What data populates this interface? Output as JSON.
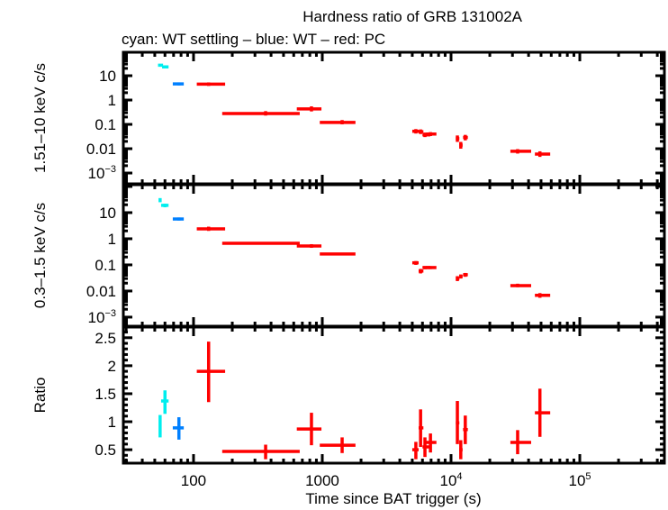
{
  "chart_data": {
    "type": "scatter",
    "title": "Hardness ratio of GRB 131002A",
    "subtitle": "cyan: WT settling – blue: WT – red: PC",
    "xlabel": "Time since BAT trigger (s)",
    "xscale": "log",
    "xlim": [
      28.5,
      454000
    ],
    "xticks": [
      {
        "value": 100,
        "label": "100"
      },
      {
        "value": 1000,
        "label": "1000"
      },
      {
        "value": 10000,
        "label": "10",
        "sup": "4"
      },
      {
        "value": 100000,
        "label": "10",
        "sup": "5"
      }
    ],
    "colors": {
      "wt_settling": "#00eeee",
      "wt": "#0080ff",
      "pc": "#ff0000"
    },
    "legend": "subtitle text (top-left)",
    "grid": false,
    "panels": [
      {
        "id": "hard",
        "ylabel": "1.51–10 keV c/s",
        "yscale": "log",
        "ylim": [
          0.00036,
          92
        ],
        "yticks": [
          {
            "value": 10,
            "label": "10"
          },
          {
            "value": 1,
            "label": "1"
          },
          {
            "value": 0.1,
            "label": "0.1"
          },
          {
            "value": 0.01,
            "label": "0.01"
          },
          {
            "value": 0.001,
            "label": "10",
            "sup": "−3"
          }
        ],
        "series": [
          {
            "name": "WT settling",
            "color_key": "wt_settling",
            "points": [
              {
                "x": 55,
                "xlo": 53,
                "xhi": 58,
                "y": 27,
                "ylo": 24,
                "yhi": 30
              },
              {
                "x": 60,
                "xlo": 57,
                "xhi": 64,
                "y": 23,
                "ylo": 21,
                "yhi": 25
              }
            ]
          },
          {
            "name": "WT",
            "color_key": "wt",
            "points": [
              {
                "x": 77,
                "xlo": 69,
                "xhi": 84,
                "y": 4.6,
                "ylo": 4.0,
                "yhi": 5.3
              }
            ]
          },
          {
            "name": "PC",
            "color_key": "pc",
            "points": [
              {
                "x": 131,
                "xlo": 106,
                "xhi": 176,
                "y": 4.5,
                "ylo": 3.8,
                "yhi": 5.3
              },
              {
                "x": 363,
                "xlo": 167,
                "xhi": 668,
                "y": 0.28,
                "ylo": 0.23,
                "yhi": 0.35
              },
              {
                "x": 824,
                "xlo": 634,
                "xhi": 985,
                "y": 0.43,
                "ylo": 0.34,
                "yhi": 0.55
              },
              {
                "x": 1426,
                "xlo": 956,
                "xhi": 1810,
                "y": 0.12,
                "ylo": 0.1,
                "yhi": 0.15
              },
              {
                "x": 5330,
                "xlo": 5000,
                "xhi": 5600,
                "y": 0.052,
                "ylo": 0.042,
                "yhi": 0.064
              },
              {
                "x": 5800,
                "xlo": 5600,
                "xhi": 6100,
                "y": 0.05,
                "ylo": 0.04,
                "yhi": 0.062
              },
              {
                "x": 6270,
                "xlo": 6000,
                "xhi": 6900,
                "y": 0.037,
                "ylo": 0.03,
                "yhi": 0.046
              },
              {
                "x": 6920,
                "xlo": 6400,
                "xhi": 7700,
                "y": 0.04,
                "ylo": 0.033,
                "yhi": 0.048
              },
              {
                "x": 11200,
                "xlo": 10900,
                "xhi": 11600,
                "y": 0.026,
                "ylo": 0.019,
                "yhi": 0.035
              },
              {
                "x": 11900,
                "xlo": 11600,
                "xhi": 12300,
                "y": 0.014,
                "ylo": 0.01,
                "yhi": 0.019
              },
              {
                "x": 12900,
                "xlo": 12400,
                "xhi": 13500,
                "y": 0.029,
                "ylo": 0.022,
                "yhi": 0.037
              },
              {
                "x": 32900,
                "xlo": 28900,
                "xhi": 41900,
                "y": 0.0078,
                "ylo": 0.0063,
                "yhi": 0.0096
              },
              {
                "x": 49000,
                "xlo": 44800,
                "xhi": 58900,
                "y": 0.006,
                "ylo": 0.0046,
                "yhi": 0.0078
              }
            ]
          }
        ]
      },
      {
        "id": "soft",
        "ylabel": "0.3–1.5 keV c/s",
        "yscale": "log",
        "ylim": [
          0.00045,
          117
        ],
        "yticks": [
          {
            "value": 10,
            "label": "10"
          },
          {
            "value": 1,
            "label": "1"
          },
          {
            "value": 0.1,
            "label": "0.1"
          },
          {
            "value": 0.01,
            "label": "0.01"
          },
          {
            "value": 0.001,
            "label": "10",
            "sup": "−3"
          }
        ],
        "series": [
          {
            "name": "WT settling",
            "color_key": "wt_settling",
            "points": [
              {
                "x": 55,
                "xlo": 54,
                "xhi": 56,
                "y": 30,
                "ylo": 25,
                "yhi": 36
              },
              {
                "x": 60,
                "xlo": 56,
                "xhi": 64,
                "y": 19,
                "ylo": 16,
                "yhi": 22
              }
            ]
          },
          {
            "name": "WT",
            "color_key": "wt",
            "points": [
              {
                "x": 77,
                "xlo": 69,
                "xhi": 84,
                "y": 5.7,
                "ylo": 5.0,
                "yhi": 6.5
              }
            ]
          },
          {
            "name": "PC",
            "color_key": "pc",
            "points": [
              {
                "x": 131,
                "xlo": 106,
                "xhi": 176,
                "y": 2.4,
                "ylo": 2.0,
                "yhi": 2.9
              },
              {
                "x": 363,
                "xlo": 167,
                "xhi": 668,
                "y": 0.67,
                "ylo": 0.6,
                "yhi": 0.75
              },
              {
                "x": 824,
                "xlo": 634,
                "xhi": 985,
                "y": 0.53,
                "ylo": 0.45,
                "yhi": 0.62
              },
              {
                "x": 1426,
                "xlo": 956,
                "xhi": 1810,
                "y": 0.26,
                "ylo": 0.23,
                "yhi": 0.29
              },
              {
                "x": 5330,
                "xlo": 5000,
                "xhi": 5600,
                "y": 0.12,
                "ylo": 0.1,
                "yhi": 0.14
              },
              {
                "x": 5800,
                "xlo": 5600,
                "xhi": 6100,
                "y": 0.058,
                "ylo": 0.047,
                "yhi": 0.07
              },
              {
                "x": 6270,
                "xlo": 6000,
                "xhi": 6900,
                "y": 0.079,
                "ylo": 0.068,
                "yhi": 0.09
              },
              {
                "x": 6920,
                "xlo": 6400,
                "xhi": 7700,
                "y": 0.079,
                "ylo": 0.069,
                "yhi": 0.089
              },
              {
                "x": 11200,
                "xlo": 10900,
                "xhi": 11600,
                "y": 0.03,
                "ylo": 0.024,
                "yhi": 0.037
              },
              {
                "x": 11900,
                "xlo": 11600,
                "xhi": 12300,
                "y": 0.036,
                "ylo": 0.03,
                "yhi": 0.043
              },
              {
                "x": 12900,
                "xlo": 12400,
                "xhi": 13500,
                "y": 0.042,
                "ylo": 0.035,
                "yhi": 0.049
              },
              {
                "x": 32900,
                "xlo": 28900,
                "xhi": 41900,
                "y": 0.016,
                "ylo": 0.014,
                "yhi": 0.019
              },
              {
                "x": 49000,
                "xlo": 44800,
                "xhi": 58900,
                "y": 0.0068,
                "ylo": 0.0055,
                "yhi": 0.0083
              }
            ]
          }
        ]
      },
      {
        "id": "ratio",
        "ylabel": "Ratio",
        "yscale": "linear",
        "ylim": [
          0.26,
          2.69
        ],
        "yticks": [
          {
            "value": 2.5,
            "label": "2.5"
          },
          {
            "value": 2,
            "label": "2"
          },
          {
            "value": 1.5,
            "label": "1.5"
          },
          {
            "value": 1,
            "label": "1"
          },
          {
            "value": 0.5,
            "label": "0.5"
          }
        ],
        "yminor": 0.1,
        "series": [
          {
            "name": "WT settling",
            "color_key": "wt_settling",
            "points": [
              {
                "x": 55,
                "xlo": 54,
                "xhi": 56,
                "y": 0.92,
                "ylo": 0.72,
                "yhi": 1.12
              },
              {
                "x": 60,
                "xlo": 56,
                "xhi": 64,
                "y": 1.37,
                "ylo": 1.14,
                "yhi": 1.56
              }
            ]
          },
          {
            "name": "WT",
            "color_key": "wt",
            "points": [
              {
                "x": 77,
                "xlo": 69,
                "xhi": 84,
                "y": 0.89,
                "ylo": 0.68,
                "yhi": 1.08
              }
            ]
          },
          {
            "name": "PC",
            "color_key": "pc",
            "points": [
              {
                "x": 131,
                "xlo": 106,
                "xhi": 176,
                "y": 1.9,
                "ylo": 1.35,
                "yhi": 2.43
              },
              {
                "x": 363,
                "xlo": 167,
                "xhi": 668,
                "y": 0.47,
                "ylo": 0.33,
                "yhi": 0.59
              },
              {
                "x": 824,
                "xlo": 634,
                "xhi": 985,
                "y": 0.87,
                "ylo": 0.58,
                "yhi": 1.16
              },
              {
                "x": 1426,
                "xlo": 956,
                "xhi": 1810,
                "y": 0.58,
                "ylo": 0.44,
                "yhi": 0.72
              },
              {
                "x": 5330,
                "xlo": 5000,
                "xhi": 5600,
                "y": 0.5,
                "ylo": 0.33,
                "yhi": 0.64
              },
              {
                "x": 5800,
                "xlo": 5600,
                "xhi": 6100,
                "y": 0.89,
                "ylo": 0.55,
                "yhi": 1.22
              },
              {
                "x": 6270,
                "xlo": 6000,
                "xhi": 6900,
                "y": 0.55,
                "ylo": 0.37,
                "yhi": 0.72
              },
              {
                "x": 6920,
                "xlo": 6400,
                "xhi": 7700,
                "y": 0.63,
                "ylo": 0.45,
                "yhi": 0.79
              },
              {
                "x": 11200,
                "xlo": 10900,
                "xhi": 11600,
                "y": 0.98,
                "ylo": 0.6,
                "yhi": 1.37
              },
              {
                "x": 11900,
                "xlo": 11600,
                "xhi": 12300,
                "y": 0.5,
                "ylo": 0.33,
                "yhi": 0.67
              },
              {
                "x": 12900,
                "xlo": 12400,
                "xhi": 13500,
                "y": 0.86,
                "ylo": 0.6,
                "yhi": 1.11
              },
              {
                "x": 32900,
                "xlo": 28900,
                "xhi": 41900,
                "y": 0.63,
                "ylo": 0.42,
                "yhi": 0.85
              },
              {
                "x": 49000,
                "xlo": 44800,
                "xhi": 58900,
                "y": 1.16,
                "ylo": 0.73,
                "yhi": 1.59
              }
            ]
          }
        ]
      }
    ]
  }
}
